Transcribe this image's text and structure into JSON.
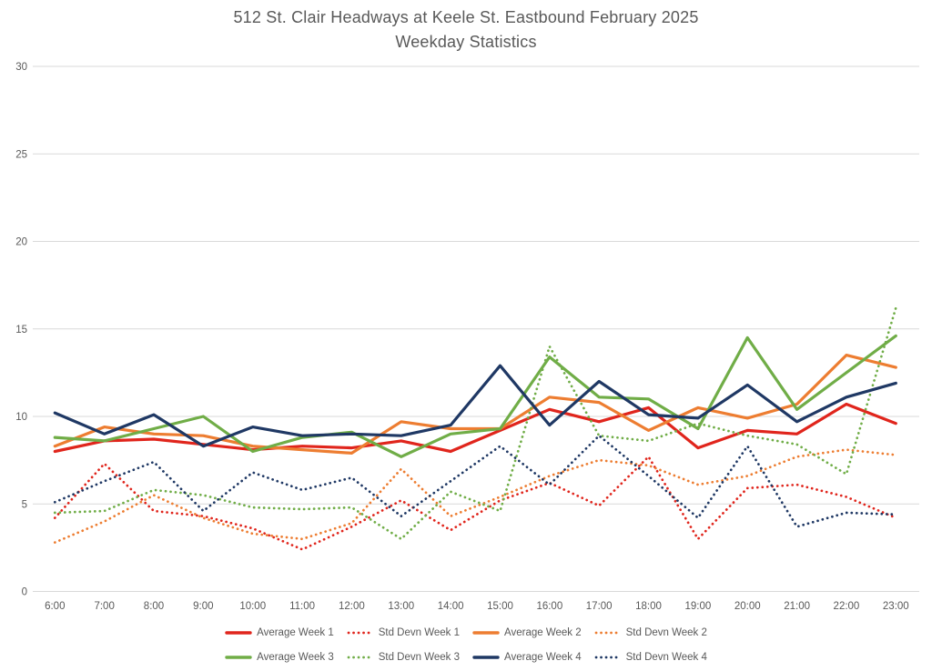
{
  "title": {
    "line1": "512 St. Clair Headways at Keele St. Eastbound February 2025",
    "line2": "Weekday Statistics"
  },
  "colors": {
    "week1": "#e0251c",
    "week2": "#ed7d31",
    "week3": "#70ad47",
    "week4": "#1f3864",
    "gridline": "#d9d9d9",
    "text": "#595959"
  },
  "chart_data": {
    "type": "line",
    "title": "512 St. Clair Headways at Keele St. Eastbound February 2025 Weekday Statistics",
    "xlabel": "",
    "ylabel": "",
    "x": [
      "6:00",
      "7:00",
      "8:00",
      "9:00",
      "10:00",
      "11:00",
      "12:00",
      "13:00",
      "14:00",
      "15:00",
      "16:00",
      "17:00",
      "18:00",
      "19:00",
      "20:00",
      "21:00",
      "22:00",
      "23:00"
    ],
    "ylim": [
      0,
      30
    ],
    "yticks": [
      0,
      5,
      10,
      15,
      20,
      25,
      30
    ],
    "grid": "horizontal",
    "legend_position": "bottom",
    "series": [
      {
        "name": "Average Week 1",
        "color": "#e0251c",
        "style": "solid",
        "values": [
          8.0,
          8.6,
          8.7,
          8.4,
          8.1,
          8.3,
          8.2,
          8.6,
          8.0,
          9.2,
          10.4,
          9.7,
          10.5,
          8.2,
          9.2,
          9.0,
          10.7,
          9.6
        ]
      },
      {
        "name": "Std Devn Week 1",
        "color": "#e0251c",
        "style": "dotted",
        "values": [
          4.2,
          7.3,
          4.6,
          4.3,
          3.6,
          2.4,
          3.7,
          5.2,
          3.5,
          5.2,
          6.2,
          4.9,
          7.7,
          3.0,
          5.9,
          6.1,
          5.4,
          4.2
        ]
      },
      {
        "name": "Average Week 2",
        "color": "#ed7d31",
        "style": "solid",
        "values": [
          8.3,
          9.4,
          9.0,
          8.9,
          8.3,
          8.1,
          7.9,
          9.7,
          9.3,
          9.3,
          11.1,
          10.8,
          9.2,
          10.5,
          9.9,
          10.7,
          13.5,
          12.8
        ]
      },
      {
        "name": "Std Devn Week 2",
        "color": "#ed7d31",
        "style": "dotted",
        "values": [
          2.8,
          4.0,
          5.5,
          4.2,
          3.3,
          3.0,
          3.9,
          7.0,
          4.3,
          5.4,
          6.6,
          7.5,
          7.2,
          6.1,
          6.6,
          7.7,
          8.1,
          7.8
        ]
      },
      {
        "name": "Average Week 3",
        "color": "#70ad47",
        "style": "solid",
        "values": [
          8.8,
          8.6,
          9.3,
          10.0,
          8.0,
          8.8,
          9.1,
          7.7,
          9.0,
          9.3,
          13.4,
          11.1,
          11.0,
          9.3,
          14.5,
          10.4,
          12.5,
          14.6
        ]
      },
      {
        "name": "Std Devn Week 3",
        "color": "#70ad47",
        "style": "dotted",
        "values": [
          4.5,
          4.6,
          5.8,
          5.5,
          4.8,
          4.7,
          4.8,
          3.0,
          5.7,
          4.6,
          14.0,
          8.9,
          8.6,
          9.6,
          8.9,
          8.4,
          6.7,
          16.2
        ]
      },
      {
        "name": "Average Week 4",
        "color": "#1f3864",
        "style": "solid",
        "values": [
          10.2,
          9.0,
          10.1,
          8.3,
          9.4,
          8.9,
          9.0,
          8.9,
          9.5,
          12.9,
          9.5,
          12.0,
          10.1,
          9.9,
          11.8,
          9.7,
          11.1,
          11.9
        ]
      },
      {
        "name": "Std Devn Week 4",
        "color": "#1f3864",
        "style": "dotted",
        "values": [
          5.1,
          6.3,
          7.4,
          4.6,
          6.8,
          5.8,
          6.5,
          4.3,
          6.3,
          8.3,
          6.1,
          8.9,
          6.6,
          4.2,
          8.3,
          3.7,
          4.5,
          4.4
        ]
      }
    ]
  }
}
